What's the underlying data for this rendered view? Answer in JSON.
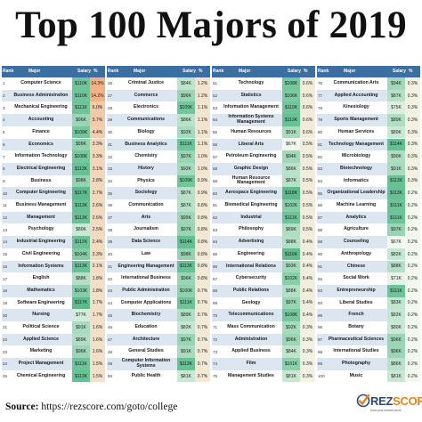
{
  "title": "Top 100 Majors of 2019",
  "footer": {
    "label": "Source:",
    "url": "https://rezscore.com/goto/college"
  },
  "logo": {
    "text_a": "REZ",
    "text_b": "SCORE",
    "tagline": "know your resume score",
    "brand_color": "#e8821e",
    "text_color": "#2b4a7a"
  },
  "colors": {
    "header": "#3a6fa6",
    "row_alt": "#dce6f1",
    "salary_low": "#f2f9ee",
    "salary_high": "#57bb8a",
    "pct_low": "#f2f9ee",
    "pct_high": "#f4b183"
  },
  "chart_data": {
    "type": "table",
    "title": "Top 100 Majors of 2019",
    "columns": [
      "Rank",
      "Major",
      "Salary",
      "%"
    ],
    "rows": [
      [
        1,
        "Computer Science",
        "$110K",
        "14.3%"
      ],
      [
        2,
        "Business Administration",
        "$110K",
        "14.2%"
      ],
      [
        3,
        "Mechanical Engineering",
        "$111K",
        "6.0%"
      ],
      [
        4,
        "Accounting",
        "$96K",
        "5.7%"
      ],
      [
        5,
        "Finance",
        "$109K",
        "4.4%"
      ],
      [
        6,
        "Economics",
        "$99K",
        "3.3%"
      ],
      [
        7,
        "Information Technology",
        "$108K",
        "3.3%"
      ],
      [
        8,
        "Electrical Engineering",
        "$113K",
        "3.1%"
      ],
      [
        9,
        "Business",
        "$98K",
        "2.8%"
      ],
      [
        10,
        "Computer Engineering",
        "$117K",
        "2.7%"
      ],
      [
        11,
        "Business Management",
        "$113K",
        "2.6%"
      ],
      [
        12,
        "Management",
        "$113K",
        "2.6%"
      ],
      [
        13,
        "Psychology",
        "$80K",
        "2.5%"
      ],
      [
        14,
        "Industrial Engineering",
        "$112K",
        "2.4%"
      ],
      [
        15,
        "Civil Engineering",
        "$104K",
        "2.3%"
      ],
      [
        16,
        "Information Systems",
        "$113K",
        "2.1%"
      ],
      [
        17,
        "English",
        "$88K",
        "1.8%"
      ],
      [
        18,
        "Mathematics",
        "$103K",
        "1.8%"
      ],
      [
        19,
        "Software Engineering",
        "$117K",
        "1.7%"
      ],
      [
        20,
        "Nursing",
        "$77K",
        "1.7%"
      ],
      [
        21,
        "Political Science",
        "$91K",
        "1.6%"
      ],
      [
        22,
        "Applied Science",
        "$89K",
        "1.6%"
      ],
      [
        23,
        "Marketing",
        "$96K",
        "1.6%"
      ],
      [
        24,
        "Project Management",
        "$111K",
        "1.5%"
      ],
      [
        25,
        "Chemical Engineering",
        "$113K",
        "1.5%"
      ],
      [
        26,
        "Criminal Justice",
        "$84K",
        "1.2%"
      ],
      [
        27,
        "Commerce",
        "$96K",
        "1.2%"
      ],
      [
        28,
        "Electronics",
        "$109K",
        "1.1%"
      ],
      [
        29,
        "Communications",
        "$86K",
        "1.1%"
      ],
      [
        30,
        "Biology",
        "$92K",
        "1.1%"
      ],
      [
        31,
        "Business Analytics",
        "$111K",
        "1.1%"
      ],
      [
        32,
        "Chemistry",
        "$97K",
        "1.0%"
      ],
      [
        33,
        "History",
        "$92K",
        "1.0%"
      ],
      [
        34,
        "Physics",
        "$109K",
        "0.9%"
      ],
      [
        35,
        "Sociology",
        "$87K",
        "0.9%"
      ],
      [
        36,
        "Communication",
        "$87K",
        "0.8%"
      ],
      [
        37,
        "Arts",
        "$95K",
        "0.8%"
      ],
      [
        38,
        "Journalism",
        "$97K",
        "0.8%"
      ],
      [
        39,
        "Data Science",
        "$114K",
        "0.8%"
      ],
      [
        40,
        "Law",
        "$98K",
        "0.8%"
      ],
      [
        41,
        "Engineering Management",
        "$113K",
        "0.8%"
      ],
      [
        42,
        "International Business",
        "$96K",
        "0.8%"
      ],
      [
        43,
        "Public Administration",
        "$100K",
        "0.7%"
      ],
      [
        44,
        "Computer Applications",
        "$111K",
        "0.7%"
      ],
      [
        45,
        "Biochemistry",
        "$89K",
        "0.7%"
      ],
      [
        46,
        "Education",
        "$82K",
        "0.7%"
      ],
      [
        47,
        "Architecture",
        "$97K",
        "0.7%"
      ],
      [
        48,
        "General Studies",
        "$91K",
        "0.7%"
      ],
      [
        49,
        "Computer Information Systems",
        "$113K",
        "0.7%"
      ],
      [
        50,
        "Public Health",
        "$81K",
        "0.7%"
      ],
      [
        51,
        "Technology",
        "$108K",
        "0.6%"
      ],
      [
        52,
        "Statistics",
        "$106K",
        "0.6%"
      ],
      [
        53,
        "Information Management",
        "$110K",
        "0.6%"
      ],
      [
        54,
        "Information Systems Management",
        "$113K",
        "0.6%"
      ],
      [
        55,
        "Human Resources",
        "$91K",
        "0.6%"
      ],
      [
        56,
        "Liberal Arts",
        "$67K",
        "0.5%"
      ],
      [
        57,
        "Petroleum Engineering",
        "$94K",
        "0.5%"
      ],
      [
        58,
        "Graphic Design",
        "$86K",
        "0.5%"
      ],
      [
        59,
        "Human Resource Management",
        "$87K",
        "0.5%"
      ],
      [
        60,
        "Aerospace Engineering",
        "$118K",
        "0.5%"
      ],
      [
        61,
        "Biomedical Engineering",
        "$102K",
        "0.5%"
      ],
      [
        62,
        "Industrial",
        "$111K",
        "0.5%"
      ],
      [
        63,
        "Philosophy",
        "$89K",
        "0.5%"
      ],
      [
        64,
        "Advertising",
        "$88K",
        "0.4%"
      ],
      [
        65,
        "Engineering",
        "$116K",
        "0.4%"
      ],
      [
        66,
        "International Relations",
        "$93K",
        "0.4%"
      ],
      [
        67,
        "Cybersecurity",
        "$102K",
        "0.4%"
      ],
      [
        68,
        "Public Relations",
        "$88K",
        "0.4%"
      ],
      [
        69,
        "Geology",
        "$97K",
        "0.4%"
      ],
      [
        70,
        "Telecommunications",
        "$108K",
        "0.4%"
      ],
      [
        71,
        "Mass Communication",
        "$92K",
        "0.3%"
      ],
      [
        72,
        "Administration",
        "$96K",
        "0.3%"
      ],
      [
        73,
        "Applied Business",
        "$84K",
        "0.3%"
      ],
      [
        74,
        "Film",
        "$101K",
        "0.3%"
      ],
      [
        75,
        "Management Studies",
        "$81K",
        "0.3%"
      ],
      [
        76,
        "Communication Arts",
        "$94K",
        "0.3%"
      ],
      [
        77,
        "Applied Accounting",
        "$87K",
        "0.3%"
      ],
      [
        78,
        "Kinesiology",
        "$75K",
        "0.3%"
      ],
      [
        79,
        "Sports Management",
        "$89K",
        "0.3%"
      ],
      [
        80,
        "Human Services",
        "$80K",
        "0.3%"
      ],
      [
        81,
        "Technology Management",
        "$114K",
        "0.3%"
      ],
      [
        82,
        "Microbiology",
        "$90K",
        "0.3%"
      ],
      [
        83,
        "Biotechnology",
        "$91K",
        "0.3%"
      ],
      [
        84,
        "Informatics",
        "$113K",
        "0.3%"
      ],
      [
        85,
        "Organizational Leadership",
        "$113K",
        "0.2%"
      ],
      [
        86,
        "Machine Learning",
        "$111K",
        "0.2%"
      ],
      [
        87,
        "Analytics",
        "$111K",
        "0.2%"
      ],
      [
        88,
        "Agriculture",
        "$97K",
        "0.2%"
      ],
      [
        89,
        "Counseling",
        "$67K",
        "0.2%"
      ],
      [
        90,
        "Anthropology",
        "$82K",
        "0.2%"
      ],
      [
        91,
        "Chinese",
        "$88K",
        "0.2%"
      ],
      [
        92,
        "Social Work",
        "$71K",
        "0.2%"
      ],
      [
        93,
        "Entrepreneurship",
        "$111K",
        "0.2%"
      ],
      [
        94,
        "Liberal Studies",
        "$83K",
        "0.2%"
      ],
      [
        95,
        "French",
        "$82K",
        "0.2%"
      ],
      [
        96,
        "Botany",
        "$80K",
        "0.2%"
      ],
      [
        97,
        "Pharmaceutical Sciences",
        "$96K",
        "0.2%"
      ],
      [
        98,
        "International Studies",
        "$96K",
        "0.2%"
      ],
      [
        99,
        "Photography",
        "$86K",
        "0.2%"
      ],
      [
        100,
        "Music",
        "$81K",
        "0.2%"
      ]
    ]
  }
}
